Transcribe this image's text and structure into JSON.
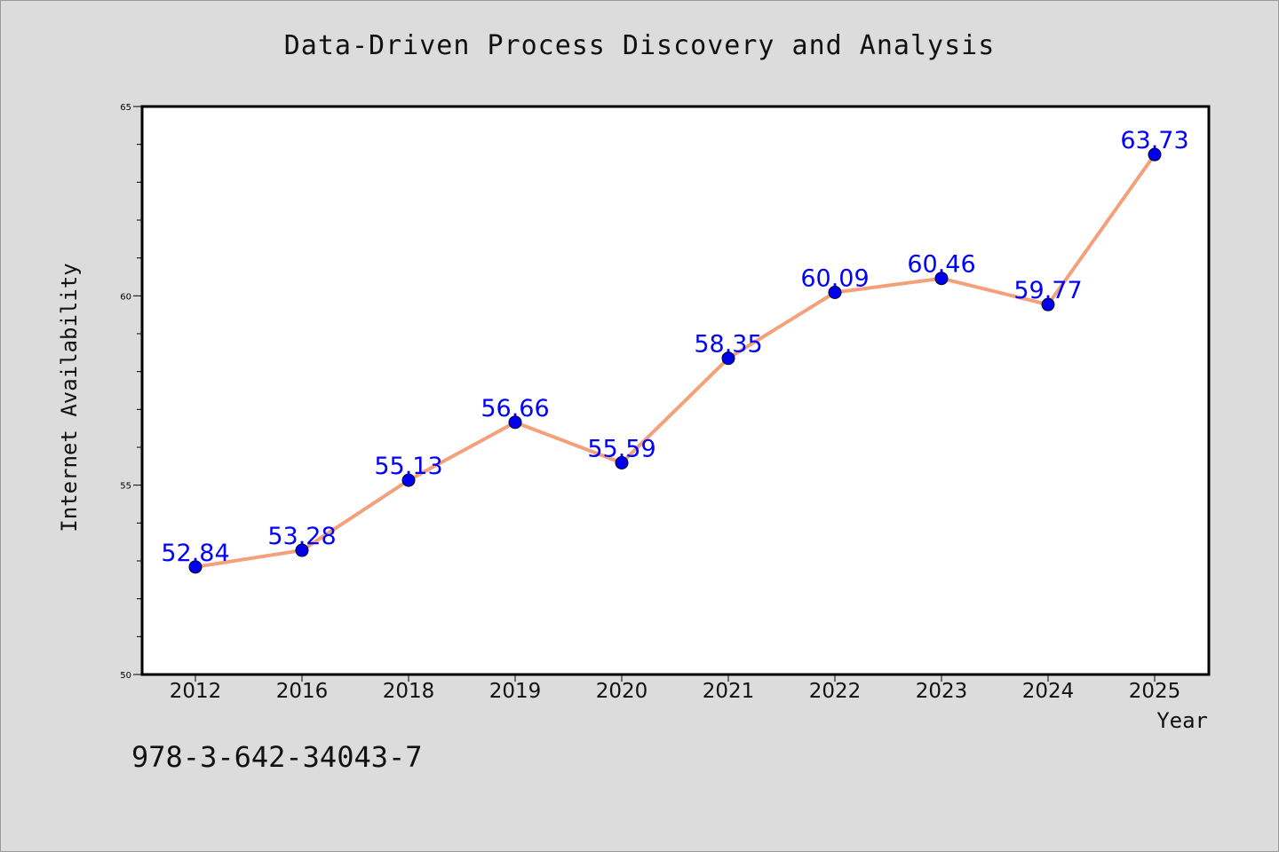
{
  "chart_data": {
    "type": "line",
    "title": "Data-Driven Process Discovery and Analysis",
    "xlabel": "Year",
    "ylabel": "Internet Availability",
    "categories": [
      "2012",
      "2016",
      "2018",
      "2019",
      "2020",
      "2021",
      "2022",
      "2023",
      "2024",
      "2025"
    ],
    "series": [
      {
        "values": [
          52.84,
          53.28,
          55.13,
          56.66,
          55.59,
          58.35,
          60.09,
          60.46,
          59.77,
          63.73
        ],
        "line_color": "#f4a07a",
        "marker_color": "#0000ee",
        "label_color": "#0000ff"
      }
    ],
    "ylim": [
      50,
      65
    ],
    "y_major_ticks": [
      "50",
      "55",
      "60",
      "65"
    ],
    "y_major_step": 5,
    "y_minor_step": 1,
    "data_labels": [
      "52.84",
      "53.28",
      "55.13",
      "56.66",
      "55.59",
      "58.35",
      "60.09",
      "60.46",
      "59.77",
      "63.73"
    ],
    "grid": false,
    "legend": false
  },
  "footer": {
    "isbn": "978-3-642-34043-7"
  },
  "colors": {
    "background": "#dcdcdc",
    "plot_background": "#ffffff"
  }
}
